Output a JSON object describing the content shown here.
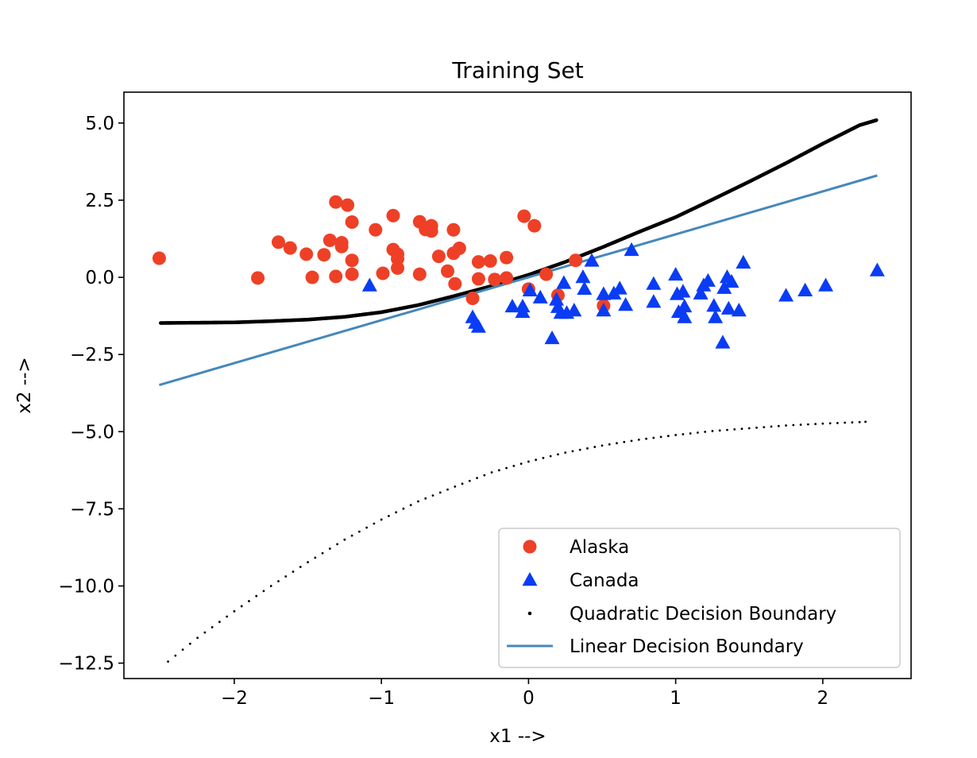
{
  "chart_data": {
    "type": "scatter",
    "title": "Training Set",
    "xlabel": "x1 -->",
    "ylabel": "x2 -->",
    "xlim": [
      -2.75,
      2.6
    ],
    "ylim": [
      -13.0,
      6.0
    ],
    "xticks": [
      -2,
      -1,
      0,
      1,
      2
    ],
    "xtick_labels": [
      "−2",
      "−1",
      "0",
      "1",
      "2"
    ],
    "yticks": [
      5.0,
      2.5,
      0.0,
      -2.5,
      -5.0,
      -7.5,
      -10.0,
      -12.5
    ],
    "ytick_labels": [
      "5.0",
      "2.5",
      "0.0",
      "−2.5",
      "−5.0",
      "−7.5",
      "−10.0",
      "−12.5"
    ],
    "grid": false,
    "legend_position": "lower-right",
    "colors": {
      "alaska": "#ee4026",
      "canada": "#0a3cf5",
      "quadratic": "#000000",
      "linear": "#4488bb"
    },
    "series": [
      {
        "name": "Alaska",
        "kind": "scatter",
        "marker": "circle",
        "color": "#ee4026",
        "points": [
          [
            -2.51,
            0.62
          ],
          [
            -1.84,
            -0.02
          ],
          [
            -1.7,
            1.14
          ],
          [
            -1.62,
            0.95
          ],
          [
            -1.51,
            0.75
          ],
          [
            -1.47,
            0.0
          ],
          [
            -1.39,
            0.73
          ],
          [
            -1.35,
            1.2
          ],
          [
            -1.31,
            2.44
          ],
          [
            -1.31,
            0.03
          ],
          [
            -1.27,
            1.12
          ],
          [
            -1.27,
            1.0
          ],
          [
            -1.23,
            2.34
          ],
          [
            -1.2,
            1.79
          ],
          [
            -1.2,
            0.55
          ],
          [
            -1.2,
            0.1
          ],
          [
            -1.04,
            1.54
          ],
          [
            -0.99,
            0.13
          ],
          [
            -0.92,
            2.0
          ],
          [
            -0.92,
            0.9
          ],
          [
            -0.89,
            0.75
          ],
          [
            -0.89,
            0.6
          ],
          [
            -0.89,
            0.3
          ],
          [
            -0.74,
            1.8
          ],
          [
            -0.74,
            0.1
          ],
          [
            -0.7,
            1.55
          ],
          [
            -0.66,
            1.67
          ],
          [
            -0.66,
            1.5
          ],
          [
            -0.61,
            0.68
          ],
          [
            -0.55,
            0.2
          ],
          [
            -0.51,
            1.54
          ],
          [
            -0.51,
            0.78
          ],
          [
            -0.5,
            -0.21
          ],
          [
            -0.47,
            0.94
          ],
          [
            -0.38,
            -0.68
          ],
          [
            -0.34,
            -0.05
          ],
          [
            -0.34,
            0.5
          ],
          [
            -0.26,
            0.53
          ],
          [
            -0.23,
            -0.07
          ],
          [
            -0.15,
            0.64
          ],
          [
            -0.15,
            -0.02
          ],
          [
            -0.03,
            1.98
          ],
          [
            0.0,
            -0.38
          ],
          [
            0.04,
            1.67
          ],
          [
            0.12,
            0.1
          ],
          [
            0.2,
            -0.58
          ],
          [
            0.32,
            0.55
          ],
          [
            0.51,
            -0.92
          ]
        ]
      },
      {
        "name": "Canada",
        "kind": "scatter",
        "marker": "triangle",
        "color": "#0a3cf5",
        "points": [
          [
            -1.08,
            -0.27
          ],
          [
            -0.38,
            -1.3
          ],
          [
            -0.36,
            -1.48
          ],
          [
            -0.34,
            -1.61
          ],
          [
            -0.11,
            -0.95
          ],
          [
            -0.04,
            -0.95
          ],
          [
            -0.04,
            -1.13
          ],
          [
            0.01,
            -0.43
          ],
          [
            0.08,
            -0.66
          ],
          [
            0.16,
            -1.98
          ],
          [
            0.19,
            -0.73
          ],
          [
            0.2,
            -0.97
          ],
          [
            0.22,
            -1.16
          ],
          [
            0.24,
            -0.19
          ],
          [
            0.26,
            -1.16
          ],
          [
            0.31,
            -1.08
          ],
          [
            0.37,
            0.0
          ],
          [
            0.38,
            -0.38
          ],
          [
            0.43,
            0.53
          ],
          [
            0.51,
            -1.08
          ],
          [
            0.51,
            -0.55
          ],
          [
            0.58,
            -0.53
          ],
          [
            0.62,
            -0.37
          ],
          [
            0.66,
            -0.9
          ],
          [
            0.7,
            0.88
          ],
          [
            0.85,
            -0.22
          ],
          [
            0.85,
            -0.8
          ],
          [
            1.0,
            0.08
          ],
          [
            1.01,
            -0.55
          ],
          [
            1.02,
            -1.13
          ],
          [
            1.05,
            -0.47
          ],
          [
            1.06,
            -0.95
          ],
          [
            1.06,
            -1.3
          ],
          [
            1.17,
            -0.53
          ],
          [
            1.19,
            -0.27
          ],
          [
            1.22,
            -0.12
          ],
          [
            1.26,
            -0.93
          ],
          [
            1.27,
            -1.3
          ],
          [
            1.32,
            -2.12
          ],
          [
            1.33,
            -0.35
          ],
          [
            1.35,
            0.0
          ],
          [
            1.36,
            -1.02
          ],
          [
            1.38,
            -0.15
          ],
          [
            1.43,
            -1.08
          ],
          [
            1.46,
            0.47
          ],
          [
            1.75,
            -0.6
          ],
          [
            1.88,
            -0.43
          ],
          [
            2.02,
            -0.27
          ],
          [
            2.37,
            0.22
          ]
        ]
      },
      {
        "name": "Quadratic Decision Boundary",
        "kind": "dots",
        "color": "#000000",
        "branches": [
          {
            "x": [
              -2.5,
              -2.25,
              -2.0,
              -1.75,
              -1.5,
              -1.25,
              -1.0,
              -0.75,
              -0.5,
              -0.25,
              0.0,
              0.25,
              0.5,
              0.75,
              1.0,
              1.25,
              1.5,
              1.75,
              2.0,
              2.25,
              2.37
            ],
            "y": [
              -1.48,
              -1.47,
              -1.46,
              -1.42,
              -1.37,
              -1.28,
              -1.13,
              -0.9,
              -0.6,
              -0.28,
              0.08,
              0.5,
              0.97,
              1.47,
              1.95,
              2.52,
              3.1,
              3.7,
              4.33,
              4.93,
              5.1
            ]
          },
          {
            "x": [
              -2.45,
              -2.25,
              -2.0,
              -1.75,
              -1.5,
              -1.25,
              -1.0,
              -0.75,
              -0.5,
              -0.25,
              0.0,
              0.25,
              0.5,
              0.75,
              1.0,
              1.25,
              1.5,
              1.75,
              2.0,
              2.25,
              2.33
            ],
            "y": [
              -12.45,
              -11.68,
              -10.82,
              -10.0,
              -9.23,
              -8.5,
              -7.85,
              -7.26,
              -6.78,
              -6.32,
              -5.97,
              -5.68,
              -5.45,
              -5.26,
              -5.11,
              -4.98,
              -4.89,
              -4.8,
              -4.74,
              -4.69,
              -4.67
            ]
          }
        ]
      },
      {
        "name": "Linear Decision Boundary",
        "kind": "line",
        "color": "#4488bb",
        "x": [
          -2.51,
          2.37
        ],
        "y": [
          -3.49,
          3.3
        ]
      }
    ]
  }
}
